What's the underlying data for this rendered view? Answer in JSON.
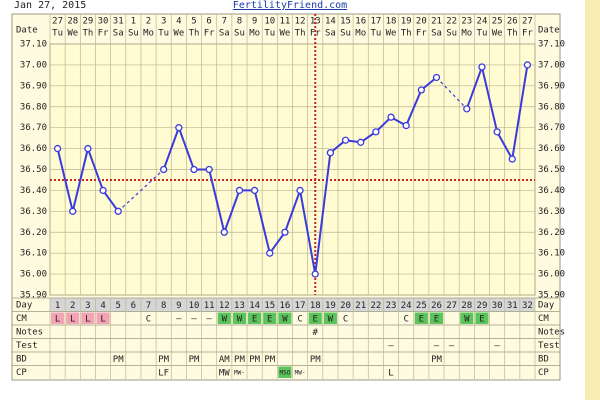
{
  "header": {
    "date": "Jan 27, 2015",
    "site": "FertilityFriend.com"
  },
  "chart_data": {
    "type": "line",
    "date_label": "Date",
    "dates": [
      27,
      28,
      29,
      30,
      31,
      1,
      2,
      3,
      4,
      5,
      6,
      7,
      8,
      9,
      10,
      11,
      12,
      13,
      14,
      15,
      16,
      17,
      18,
      19,
      20,
      21,
      22,
      23,
      24,
      25,
      26,
      27
    ],
    "weekdays": [
      "Tu",
      "We",
      "Th",
      "Fr",
      "Sa",
      "Su",
      "Mo",
      "Tu",
      "We",
      "Th",
      "Fr",
      "Sa",
      "Su",
      "Mo",
      "Tu",
      "We",
      "Th",
      "Fr",
      "Sa",
      "Su",
      "Mo",
      "Tu",
      "We",
      "Th",
      "Fr",
      "Sa",
      "Su",
      "Mo",
      "Tu",
      "We",
      "Th",
      "Fr"
    ],
    "values": [
      36.6,
      36.3,
      36.6,
      36.4,
      36.3,
      null,
      null,
      36.5,
      36.7,
      36.5,
      36.5,
      36.2,
      36.4,
      36.4,
      36.1,
      36.2,
      36.4,
      36.0,
      36.58,
      36.64,
      36.63,
      36.68,
      36.75,
      36.71,
      36.88,
      36.94,
      null,
      36.79,
      36.99,
      36.68,
      36.55,
      37.0
    ],
    "color": "#3b3bdc",
    "ylim": [
      35.9,
      37.1
    ],
    "yticks": [
      {
        "value": 35.9,
        "label": "35.90"
      },
      {
        "value": 36.0,
        "label": "36.00"
      },
      {
        "value": 36.1,
        "label": "36.10"
      },
      {
        "value": 36.2,
        "label": "36.20"
      },
      {
        "value": 36.3,
        "label": "36.30"
      },
      {
        "value": 36.4,
        "label": "36.40"
      },
      {
        "value": 36.5,
        "label": "36.50"
      },
      {
        "value": 36.6,
        "label": "36.60"
      },
      {
        "value": 36.7,
        "label": "36.70"
      },
      {
        "value": 36.8,
        "label": "36.80"
      },
      {
        "value": 36.9,
        "label": "36.90"
      },
      {
        "value": 37.0,
        "label": "37.00"
      },
      {
        "value": 37.1,
        "label": "37.10"
      }
    ],
    "grid": true,
    "coverline": 36.45,
    "ovulation_day": 18,
    "marker_color": "#cc2222"
  },
  "rows": [
    {
      "label": "Day",
      "fill": "#d6d6d6",
      "cells": [
        1,
        2,
        3,
        4,
        5,
        6,
        7,
        8,
        9,
        10,
        11,
        12,
        13,
        14,
        15,
        16,
        17,
        18,
        19,
        20,
        21,
        22,
        23,
        24,
        25,
        26,
        27,
        28,
        29,
        30,
        31,
        32
      ]
    },
    {
      "label": "CM",
      "cells": [
        "L",
        "L",
        "L",
        "L",
        null,
        null,
        "C",
        null,
        "–",
        "–",
        "–",
        "W",
        "W",
        "E",
        "E",
        "W",
        "C",
        "E",
        "W",
        "C",
        null,
        null,
        null,
        "C",
        "E",
        "E",
        null,
        "W",
        "E",
        null,
        null,
        null
      ],
      "colors": [
        "#f2a3b5",
        "#f2a3b5",
        "#f2a3b5",
        "#f2a3b5",
        null,
        null,
        null,
        null,
        null,
        null,
        null,
        "#5cc45c",
        "#5cc45c",
        "#5cc45c",
        "#5cc45c",
        "#5cc45c",
        null,
        "#5cc45c",
        "#5cc45c",
        null,
        null,
        null,
        null,
        null,
        "#5cc45c",
        "#5cc45c",
        null,
        "#5cc45c",
        "#5cc45c",
        null,
        null,
        null
      ]
    },
    {
      "label": "Notes",
      "cells": [
        null,
        null,
        null,
        null,
        null,
        null,
        null,
        null,
        null,
        null,
        null,
        null,
        null,
        null,
        null,
        null,
        null,
        "#",
        null,
        null,
        null,
        null,
        null,
        null,
        null,
        null,
        null,
        null,
        null,
        null,
        null,
        null
      ]
    },
    {
      "label": "Test",
      "cells": [
        null,
        null,
        null,
        null,
        null,
        null,
        null,
        null,
        null,
        null,
        null,
        null,
        null,
        null,
        null,
        null,
        null,
        null,
        null,
        null,
        null,
        null,
        "–",
        null,
        null,
        "–",
        "–",
        null,
        null,
        "–",
        null,
        null
      ]
    },
    {
      "label": "BD",
      "cells": [
        null,
        null,
        null,
        null,
        "PM",
        null,
        null,
        "PM",
        null,
        "PM",
        null,
        "AM",
        "PM",
        "PM",
        "PM",
        null,
        null,
        "PM",
        null,
        null,
        null,
        null,
        null,
        null,
        null,
        "PM",
        null,
        null,
        null,
        null,
        null,
        null
      ]
    },
    {
      "label": "CP",
      "cells": [
        null,
        null,
        null,
        null,
        null,
        null,
        null,
        "LF",
        null,
        null,
        null,
        "MW",
        "MW-",
        null,
        null,
        "MSO",
        "MW-",
        null,
        null,
        null,
        null,
        null,
        "L",
        null,
        null,
        null,
        null,
        null,
        null,
        null,
        null,
        null
      ],
      "colors": [
        null,
        null,
        null,
        null,
        null,
        null,
        null,
        null,
        null,
        null,
        null,
        null,
        null,
        null,
        null,
        "#5cc45c",
        null,
        null,
        null,
        null,
        null,
        null,
        null,
        null,
        null,
        null,
        null,
        null,
        null,
        null,
        null,
        null
      ]
    }
  ]
}
